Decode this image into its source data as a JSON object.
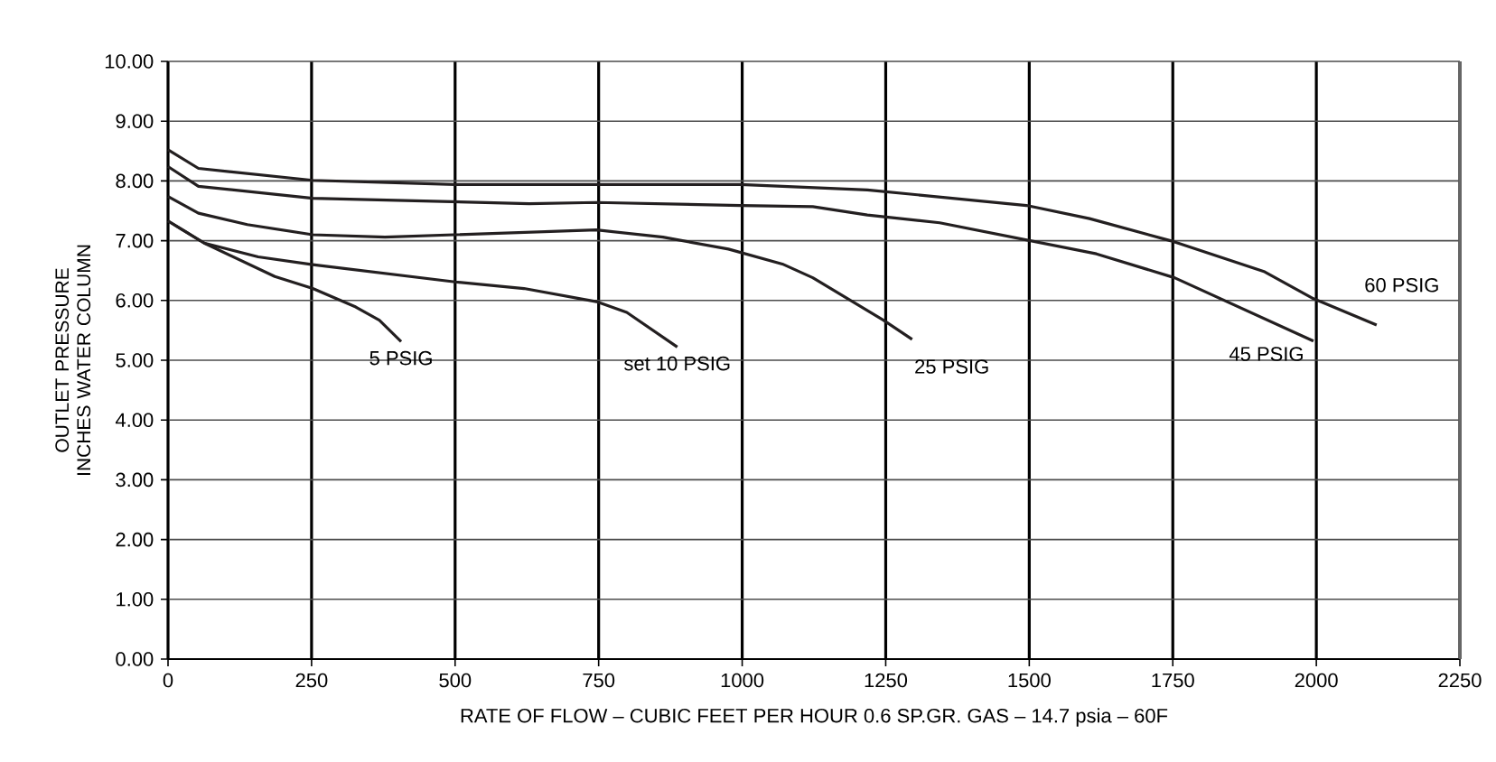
{
  "chart_data": {
    "type": "line",
    "xlabel": "RATE OF FLOW – CUBIC FEET PER HOUR  0.6 SP.GR. GAS – 14.7 psia – 60F",
    "ylabel": "OUTLET PRESSURE INCHES WATER COLUMN",
    "xlim": [
      0,
      2250
    ],
    "ylim": [
      0,
      10
    ],
    "xticks": [
      0,
      250,
      500,
      750,
      1000,
      1250,
      1500,
      1750,
      2000,
      2250
    ],
    "yticks": [
      {
        "value": 0,
        "label": "0.00"
      },
      {
        "value": 1,
        "label": "1.00"
      },
      {
        "value": 2,
        "label": "2.00"
      },
      {
        "value": 3,
        "label": "3.00"
      },
      {
        "value": 4,
        "label": "4.00"
      },
      {
        "value": 5,
        "label": "5.00"
      },
      {
        "value": 6,
        "label": "6.00"
      },
      {
        "value": 7,
        "label": "7.00"
      },
      {
        "value": 8,
        "label": "8.00"
      },
      {
        "value": 9,
        "label": "9.00"
      },
      {
        "value": 10,
        "label": "10.00"
      }
    ],
    "grid": true,
    "marker": "none",
    "line_style": "solid",
    "series": [
      {
        "name": "5 PSIG",
        "color": "#231f20",
        "x": [
          0,
          63,
          186,
          252,
          327,
          368,
          406
        ],
        "values": [
          7.33,
          6.96,
          6.4,
          6.2,
          5.89,
          5.67,
          5.31
        ]
      },
      {
        "name": "set 10 PSIG",
        "color": "#231f20",
        "x": [
          0,
          63,
          157,
          252,
          500,
          620,
          746,
          799,
          887
        ],
        "values": [
          7.33,
          6.96,
          6.73,
          6.6,
          6.31,
          6.2,
          5.98,
          5.8,
          5.22
        ]
      },
      {
        "name": "25 PSIG",
        "color": "#231f20",
        "x": [
          0,
          53,
          138,
          252,
          378,
          746,
          862,
          976,
          1070,
          1123,
          1246,
          1296
        ],
        "values": [
          7.74,
          7.46,
          7.27,
          7.1,
          7.06,
          7.18,
          7.06,
          6.86,
          6.61,
          6.38,
          5.67,
          5.35
        ]
      },
      {
        "name": "45 PSIG",
        "color": "#231f20",
        "x": [
          0,
          53,
          252,
          629,
          746,
          997,
          1123,
          1218,
          1344,
          1617,
          1753,
          1995
        ],
        "values": [
          8.24,
          7.91,
          7.71,
          7.62,
          7.64,
          7.59,
          7.57,
          7.43,
          7.3,
          6.78,
          6.38,
          5.32
        ]
      },
      {
        "name": "60 PSIG",
        "color": "#231f20",
        "x": [
          0,
          53,
          252,
          500,
          997,
          1218,
          1495,
          1605,
          1746,
          1910,
          1995,
          2105
        ],
        "values": [
          8.52,
          8.21,
          8.01,
          7.94,
          7.94,
          7.85,
          7.59,
          7.37,
          7.0,
          6.48,
          6.03,
          5.59
        ]
      }
    ]
  }
}
